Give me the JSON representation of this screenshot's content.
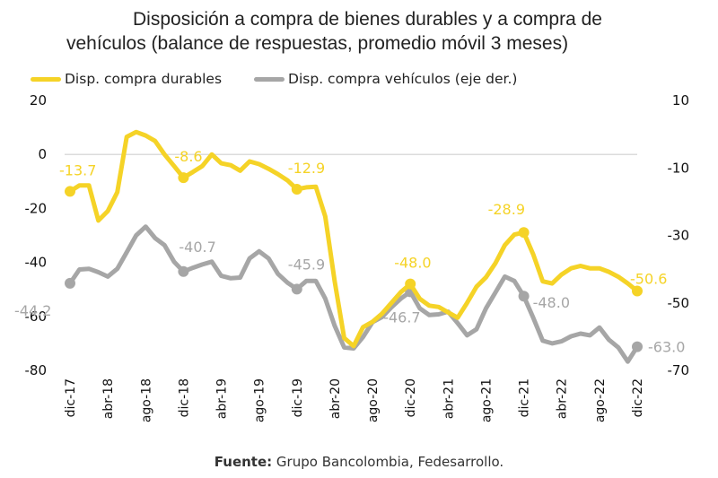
{
  "title_line1": "Disposición a compra de bienes durables y a compra de",
  "title_line2": "vehículos (balance de respuestas, promedio móvil 3 meses)",
  "footer_label": "Fuente:",
  "footer_text": " Grupo Bancolombia, Fedesarrollo.",
  "colors": {
    "durables": "#F5D327",
    "vehiculos": "#A6A6A6",
    "zero_line": "#D0D0D0"
  },
  "chart_data": {
    "type": "line",
    "title": "Disposición a compra de bienes durables y a compra de vehículos (balance de respuestas, promedio móvil 3 meses)",
    "xlabel": "",
    "ylabel_left": "",
    "ylabel_right": "",
    "legend_position": "top",
    "grid": false,
    "y_left": {
      "range": [
        -80,
        20
      ],
      "ticks": [
        "20",
        "0",
        "-20",
        "-40",
        "-60",
        "-80"
      ],
      "tick_values": [
        20,
        0,
        -20,
        -40,
        -60,
        -80
      ]
    },
    "y_right": {
      "range": [
        -70,
        10
      ],
      "ticks": [
        "10",
        "-10",
        "-30",
        "-50",
        "-70"
      ],
      "tick_values": [
        10,
        -10,
        -30,
        -50,
        -70
      ]
    },
    "x_tick_labels": [
      "dic-17",
      "abr-18",
      "ago-18",
      "dic-18",
      "abr-19",
      "ago-19",
      "dic-19",
      "abr-20",
      "ago-20",
      "dic-20",
      "abr-21",
      "ago-21",
      "dic-21",
      "abr-22",
      "ago-22",
      "dic-22"
    ],
    "x_tick_step_months": 4,
    "n_points": 61,
    "series": [
      {
        "name": "Disp. compra durables",
        "axis": "left",
        "values": [
          -13.7,
          -11.5,
          -11.5,
          -24.5,
          -21.0,
          -14.0,
          6.5,
          8.3,
          7.0,
          5.0,
          0.0,
          -4.3,
          -8.6,
          -6.5,
          -4.3,
          0.0,
          -3.3,
          -4.0,
          -6.0,
          -2.6,
          -3.6,
          -5.3,
          -7.3,
          -9.6,
          -12.9,
          -12.2,
          -12.0,
          -23.0,
          -47.0,
          -68.0,
          -71.0,
          -64.0,
          -62.0,
          -59.0,
          -55.0,
          -51.0,
          -48.0,
          -53.5,
          -56.0,
          -56.5,
          -58.5,
          -60.5,
          -55.0,
          -49.0,
          -45.5,
          -40.3,
          -33.6,
          -29.7,
          -28.9,
          -37.0,
          -47.0,
          -47.8,
          -44.5,
          -42.2,
          -41.3,
          -42.2,
          -42.2,
          -43.5,
          -45.3,
          -47.8,
          -50.6
        ],
        "labels": [
          {
            "index": 0,
            "text": "-13.7"
          },
          {
            "index": 12,
            "text": "-8.6"
          },
          {
            "index": 24,
            "text": "-12.9"
          },
          {
            "index": 36,
            "text": "-48.0"
          },
          {
            "index": 48,
            "text": "-28.9"
          },
          {
            "index": 60,
            "text": "-50.6"
          }
        ]
      },
      {
        "name": "Disp. compra vehículos (eje der.)",
        "axis": "right",
        "values": [
          -44.2,
          -40.1,
          -39.9,
          -40.9,
          -42.2,
          -39.9,
          -35.0,
          -30.0,
          -27.4,
          -30.8,
          -32.9,
          -37.8,
          -40.7,
          -39.6,
          -38.6,
          -37.8,
          -42.0,
          -42.7,
          -42.5,
          -36.8,
          -34.7,
          -36.8,
          -41.4,
          -44.0,
          -45.9,
          -43.5,
          -43.5,
          -48.7,
          -56.8,
          -63.2,
          -63.5,
          -60.1,
          -55.7,
          -54.2,
          -51.3,
          -48.7,
          -46.7,
          -51.6,
          -53.6,
          -53.4,
          -52.6,
          -56.0,
          -59.6,
          -57.8,
          -51.6,
          -46.9,
          -42.2,
          -43.5,
          -48.0,
          -54.4,
          -61.2,
          -62.0,
          -61.4,
          -59.9,
          -59.1,
          -59.6,
          -57.3,
          -60.9,
          -63.2,
          -67.4,
          -63.0
        ],
        "labels": [
          {
            "index": 0,
            "text": "-44.2"
          },
          {
            "index": 12,
            "text": "-40.7"
          },
          {
            "index": 24,
            "text": "-45.9"
          },
          {
            "index": 36,
            "text": "-46.7"
          },
          {
            "index": 48,
            "text": "-48.0"
          },
          {
            "index": 60,
            "text": "-63.0"
          }
        ]
      }
    ]
  }
}
